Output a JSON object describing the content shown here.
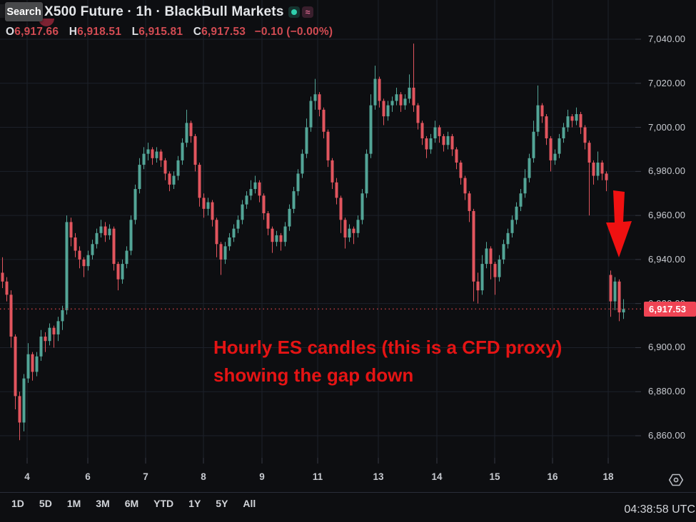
{
  "header": {
    "search_tooltip": "Search",
    "symbol_title": "X500 Future · 1h · BlackBull Markets",
    "badges": {
      "market_status_color": "#2fd0ad",
      "approx_glyph": "≈"
    },
    "ohlc": {
      "o_label": "O",
      "o": "6,917.66",
      "h_label": "H",
      "h": "6,918.51",
      "l_label": "L",
      "l": "6,915.81",
      "c_label": "C",
      "c": "6,917.53",
      "change": "−0.10 (−0.00%)"
    }
  },
  "annotation": {
    "line1": "Hourly ES candles (this is a CFD proxy)",
    "line2": "showing the gap down"
  },
  "price_line_label": "6,917.53",
  "utc_clock": "04:38:58 UTC",
  "toolbar": {
    "ranges": [
      "1D",
      "5D",
      "1M",
      "3M",
      "6M",
      "YTD",
      "1Y",
      "5Y",
      "All"
    ]
  },
  "chart_data": {
    "type": "candlestick",
    "title": "X500 Future · 1h · BlackBull Markets",
    "interval": "1h",
    "current_price": 6917.53,
    "price_axis": {
      "ticks": [
        7040,
        7020,
        7000,
        6980,
        6960,
        6940,
        6920,
        6900,
        6880,
        6860
      ],
      "labels": [
        "7,040.00",
        "7,020.00",
        "7,000.00",
        "6,980.00",
        "6,960.00",
        "6,940.00",
        "6,920.00",
        "6,900.00",
        "6,880.00",
        "6,860.00"
      ]
    },
    "time_axis": {
      "labels": [
        "4",
        "6",
        "7",
        "8",
        "9",
        "11",
        "13",
        "14",
        "15",
        "16",
        "18"
      ],
      "x": [
        38,
        123,
        204,
        285,
        367,
        445,
        530,
        612,
        693,
        774,
        852
      ]
    },
    "colors": {
      "up": "#53a597",
      "down": "#e2555e",
      "grid": "#1d212a",
      "tick": "#363a45",
      "annotation": "#e51414",
      "price_line": "#b03a40",
      "price_label_bg": "#ef4454",
      "arrow": "#f01111"
    },
    "candles": [
      [
        6934,
        6941,
        6927,
        6930
      ],
      [
        6930,
        6932,
        6921,
        6924
      ],
      [
        6924,
        6926,
        6900,
        6905
      ],
      [
        6905,
        6906,
        6872,
        6878
      ],
      [
        6878,
        6880,
        6858,
        6866
      ],
      [
        6866,
        6888,
        6862,
        6886
      ],
      [
        6886,
        6902,
        6884,
        6897
      ],
      [
        6897,
        6898,
        6885,
        6889
      ],
      [
        6889,
        6898,
        6887,
        6896
      ],
      [
        6896,
        6908,
        6894,
        6905
      ],
      [
        6905,
        6907,
        6898,
        6903
      ],
      [
        6903,
        6911,
        6901,
        6909
      ],
      [
        6909,
        6910,
        6900,
        6906
      ],
      [
        6906,
        6914,
        6903,
        6912
      ],
      [
        6912,
        6919,
        6908,
        6917
      ],
      [
        6917,
        6960,
        6915,
        6957
      ],
      [
        6957,
        6959,
        6946,
        6950
      ],
      [
        6950,
        6952,
        6941,
        6944
      ],
      [
        6944,
        6946,
        6936,
        6940
      ],
      [
        6940,
        6941,
        6932,
        6937
      ],
      [
        6937,
        6944,
        6935,
        6942
      ],
      [
        6942,
        6949,
        6940,
        6947
      ],
      [
        6947,
        6954,
        6945,
        6952
      ],
      [
        6952,
        6958,
        6950,
        6955
      ],
      [
        6955,
        6957,
        6948,
        6951
      ],
      [
        6951,
        6956,
        6949,
        6954
      ],
      [
        6954,
        6955,
        6935,
        6938
      ],
      [
        6938,
        6939,
        6926,
        6931
      ],
      [
        6931,
        6940,
        6929,
        6938
      ],
      [
        6938,
        6946,
        6936,
        6944
      ],
      [
        6944,
        6960,
        6942,
        6958
      ],
      [
        6958,
        6974,
        6956,
        6972
      ],
      [
        6972,
        6986,
        6970,
        6983
      ],
      [
        6983,
        6991,
        6981,
        6988
      ],
      [
        6988,
        6993,
        6985,
        6990
      ],
      [
        6990,
        6991,
        6983,
        6986
      ],
      [
        6986,
        6991,
        6984,
        6989
      ],
      [
        6989,
        6990,
        6982,
        6985
      ],
      [
        6985,
        6986,
        6976,
        6979
      ],
      [
        6979,
        6980,
        6971,
        6974
      ],
      [
        6974,
        6980,
        6972,
        6978
      ],
      [
        6978,
        6987,
        6976,
        6985
      ],
      [
        6985,
        6995,
        6983,
        6993
      ],
      [
        6993,
        7008,
        6991,
        7002
      ],
      [
        7002,
        7003,
        6993,
        6996
      ],
      [
        6996,
        6997,
        6980,
        6983
      ],
      [
        6983,
        6984,
        6964,
        6968
      ],
      [
        6968,
        6970,
        6959,
        6963
      ],
      [
        6963,
        6968,
        6960,
        6966
      ],
      [
        6966,
        6967,
        6955,
        6958
      ],
      [
        6958,
        6959,
        6941,
        6947
      ],
      [
        6947,
        6948,
        6933,
        6940
      ],
      [
        6940,
        6948,
        6938,
        6946
      ],
      [
        6946,
        6952,
        6944,
        6950
      ],
      [
        6950,
        6956,
        6948,
        6954
      ],
      [
        6954,
        6960,
        6952,
        6958
      ],
      [
        6958,
        6967,
        6956,
        6965
      ],
      [
        6965,
        6971,
        6963,
        6969
      ],
      [
        6969,
        6976,
        6967,
        6972
      ],
      [
        6972,
        6978,
        6970,
        6975
      ],
      [
        6975,
        6976,
        6966,
        6969
      ],
      [
        6969,
        6970,
        6958,
        6961
      ],
      [
        6961,
        6962,
        6951,
        6954
      ],
      [
        6954,
        6955,
        6943,
        6948
      ],
      [
        6948,
        6953,
        6946,
        6951
      ],
      [
        6951,
        6952,
        6944,
        6948
      ],
      [
        6948,
        6957,
        6946,
        6955
      ],
      [
        6955,
        6965,
        6953,
        6963
      ],
      [
        6963,
        6973,
        6961,
        6971
      ],
      [
        6971,
        6981,
        6969,
        6979
      ],
      [
        6979,
        6990,
        6977,
        6988
      ],
      [
        6988,
        7004,
        6986,
        7000
      ],
      [
        7000,
        7014,
        6998,
        7012
      ],
      [
        7012,
        7022,
        7008,
        7015
      ],
      [
        7015,
        7016,
        7005,
        7008
      ],
      [
        7008,
        7009,
        6995,
        6998
      ],
      [
        6998,
        6999,
        6982,
        6985
      ],
      [
        6985,
        6986,
        6972,
        6975
      ],
      [
        6975,
        6977,
        6965,
        6968
      ],
      [
        6968,
        6969,
        6952,
        6958
      ],
      [
        6958,
        6959,
        6945,
        6950
      ],
      [
        6950,
        6956,
        6948,
        6954
      ],
      [
        6954,
        6955,
        6947,
        6952
      ],
      [
        6952,
        6960,
        6950,
        6958
      ],
      [
        6958,
        6972,
        6956,
        6970
      ],
      [
        6970,
        6990,
        6968,
        6988
      ],
      [
        6988,
        7015,
        6986,
        7010
      ],
      [
        7010,
        7028,
        7008,
        7022
      ],
      [
        7022,
        7023,
        7009,
        7012
      ],
      [
        7012,
        7013,
        7001,
        7005
      ],
      [
        7005,
        7012,
        7003,
        7010
      ],
      [
        7010,
        7014,
        7007,
        7012
      ],
      [
        7012,
        7018,
        7010,
        7015
      ],
      [
        7015,
        7016,
        7007,
        7010
      ],
      [
        7010,
        7015,
        7008,
        7013
      ],
      [
        7013,
        7024,
        7011,
        7018
      ],
      [
        7018,
        7038,
        7007,
        7010
      ],
      [
        7010,
        7011,
        6999,
        7002
      ],
      [
        7002,
        7003,
        6992,
        6995
      ],
      [
        6995,
        6996,
        6986,
        6990
      ],
      [
        6990,
        6997,
        6988,
        6995
      ],
      [
        6995,
        7003,
        6993,
        7000
      ],
      [
        7000,
        7001,
        6993,
        6996
      ],
      [
        6996,
        6997,
        6989,
        6992
      ],
      [
        6992,
        6998,
        6990,
        6996
      ],
      [
        6996,
        6997,
        6987,
        6990
      ],
      [
        6990,
        6991,
        6981,
        6984
      ],
      [
        6984,
        6985,
        6974,
        6977
      ],
      [
        6977,
        6978,
        6967,
        6970
      ],
      [
        6970,
        6971,
        6957,
        6962
      ],
      [
        6962,
        6963,
        6921,
        6930
      ],
      [
        6930,
        6934,
        6920,
        6926
      ],
      [
        6926,
        6942,
        6924,
        6938
      ],
      [
        6938,
        6948,
        6936,
        6945
      ],
      [
        6945,
        6946,
        6931,
        6938
      ],
      [
        6938,
        6939,
        6924,
        6932
      ],
      [
        6932,
        6942,
        6930,
        6940
      ],
      [
        6940,
        6949,
        6938,
        6947
      ],
      [
        6947,
        6954,
        6945,
        6952
      ],
      [
        6952,
        6960,
        6950,
        6958
      ],
      [
        6958,
        6966,
        6956,
        6964
      ],
      [
        6964,
        6972,
        6962,
        6970
      ],
      [
        6970,
        6981,
        6968,
        6977
      ],
      [
        6977,
        6988,
        6975,
        6986
      ],
      [
        6986,
        7003,
        6984,
        6998
      ],
      [
        6998,
        7019,
        6996,
        7010
      ],
      [
        7010,
        7011,
        7002,
        7005
      ],
      [
        7005,
        7006,
        6992,
        6995
      ],
      [
        6995,
        6996,
        6980,
        6985
      ],
      [
        6985,
        6990,
        6983,
        6988
      ],
      [
        6988,
        6997,
        6986,
        6995
      ],
      [
        6995,
        7002,
        6993,
        7000
      ],
      [
        7000,
        7008,
        6998,
        7005
      ],
      [
        7005,
        7006,
        7000,
        7003
      ],
      [
        7003,
        7009,
        7001,
        7006
      ],
      [
        7006,
        7007,
        6997,
        7000
      ],
      [
        7000,
        7001,
        6990,
        6993
      ],
      [
        6993,
        6994,
        6960,
        6984
      ],
      [
        6984,
        6985,
        6974,
        6978
      ],
      [
        6978,
        6989,
        6976,
        6984
      ],
      [
        6984,
        6985,
        6976,
        6979
      ],
      [
        6979,
        6980,
        6971,
        6976
      ],
      [
        6933,
        6935,
        6914,
        6921
      ],
      [
        6921,
        6932,
        6917,
        6930
      ],
      [
        6930,
        6931,
        6912,
        6916
      ],
      [
        6916,
        6922,
        6913,
        6917.5
      ]
    ]
  }
}
